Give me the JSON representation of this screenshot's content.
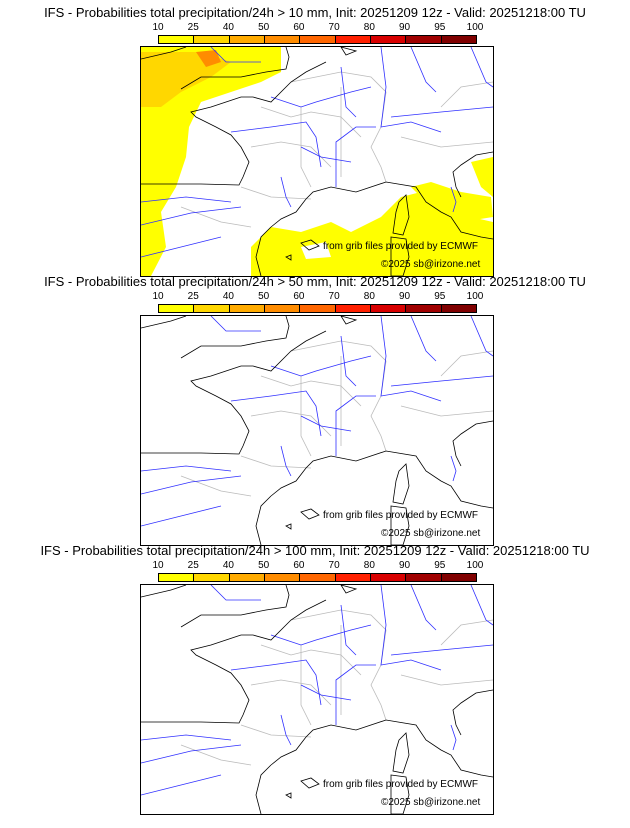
{
  "panels": [
    {
      "title": "IFS - Probabilities total precipitation/24h > 10 mm, Init: 20251209 12z - Valid: 20251218:00 TU",
      "has_rain": true
    },
    {
      "title": "IFS - Probabilities total precipitation/24h > 50 mm, Init: 20251209 12z - Valid: 20251218:00 TU",
      "has_rain": false
    },
    {
      "title": "IFS - Probabilities total precipitation/24h > 100 mm, Init: 20251209 12z - Valid: 20251218:00 TU",
      "has_rain": false
    }
  ],
  "colorbar": {
    "ticks": [
      "10",
      "25",
      "40",
      "50",
      "60",
      "70",
      "80",
      "90",
      "95",
      "100"
    ],
    "colors": [
      "#ffff00",
      "#ffd700",
      "#ffab00",
      "#ff8c00",
      "#ff6600",
      "#ff2000",
      "#d80000",
      "#a00000",
      "#800000",
      "#5a0000"
    ]
  },
  "credits": {
    "source": "from grib files provided by ECMWF",
    "copyright": "©2025 sb@irizone.net"
  }
}
